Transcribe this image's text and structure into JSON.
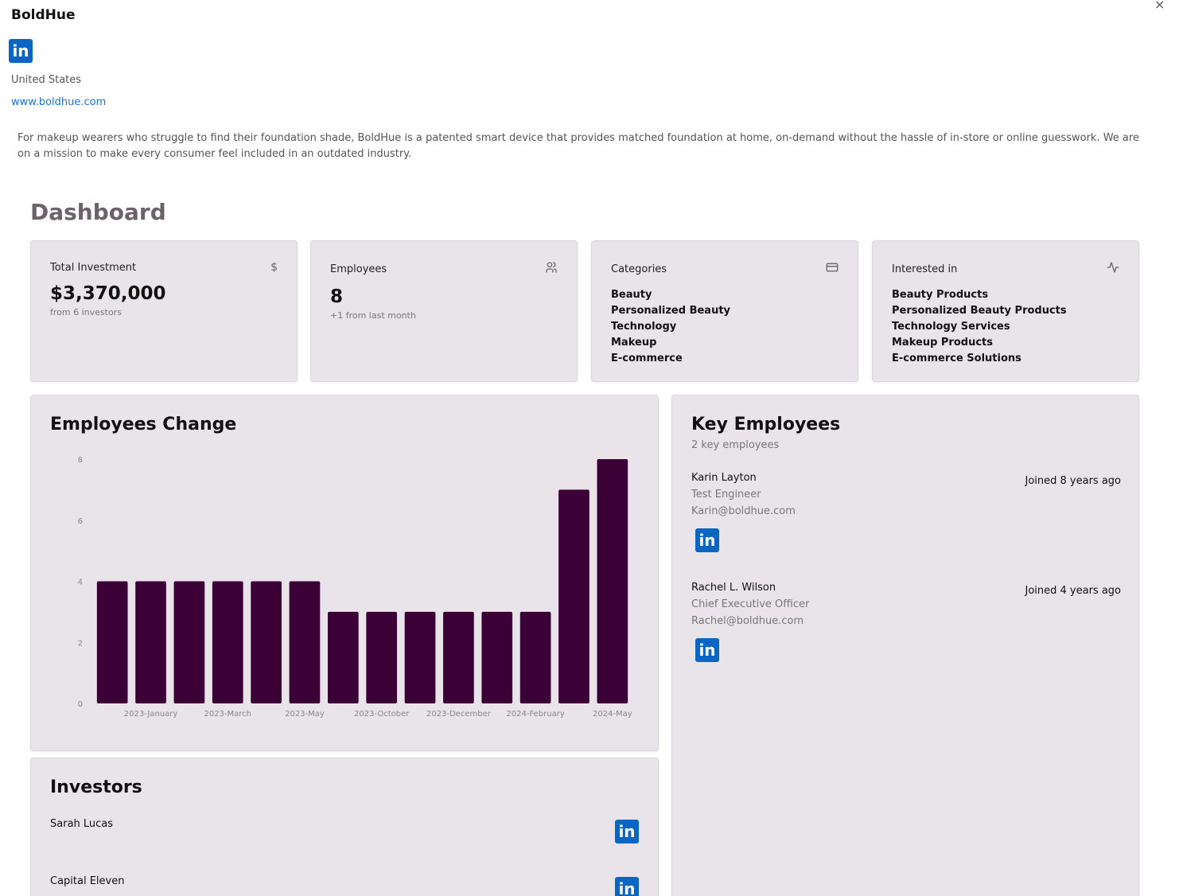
{
  "company": {
    "name": "BoldHue",
    "country": "United States",
    "website": "www.boldhue.com",
    "description": "For makeup wearers who struggle to find their foundation shade, BoldHue is a patented smart device that provides matched foundation at home, on-demand without the hassle of in-store or online guesswork. We are on a mission to make every consumer feel included in an outdated industry."
  },
  "icons": {
    "close": "close-icon",
    "linkedin": "linkedin-icon",
    "dollar": "dollar-icon",
    "users": "users-icon",
    "card": "credit-card-icon",
    "activity": "activity-icon"
  },
  "close_glyph": "×",
  "linkedin_glyph": "in",
  "dashboard": {
    "title": "Dashboard",
    "total_investment": {
      "label": "Total Investment",
      "value": "$3,370,000",
      "sub": "from 6 investors"
    },
    "employees": {
      "label": "Employees",
      "value": "8",
      "sub": "+1 from last month"
    },
    "categories": {
      "label": "Categories",
      "items": [
        "Beauty",
        "Personalized Beauty",
        "Technology",
        "Makeup",
        "E-commerce"
      ]
    },
    "interested_in": {
      "label": "Interested in",
      "items": [
        "Beauty Products",
        "Personalized Beauty Products",
        "Technology Services",
        "Makeup Products",
        "E-commerce Solutions"
      ]
    }
  },
  "employees_change": {
    "title": "Employees Change"
  },
  "chart_data": {
    "type": "bar",
    "title": "Employees Change",
    "bar_color": "#3b0036",
    "ylim": [
      0,
      8
    ],
    "y_ticks": [
      0,
      2,
      4,
      6,
      8
    ],
    "values": [
      4,
      4,
      4,
      4,
      4,
      4,
      3,
      3,
      3,
      3,
      3,
      3,
      7,
      8
    ],
    "x_tick_labels": [
      "2023-January",
      "2023-March",
      "2023-May",
      "2023-October",
      "2023-December",
      "2024-February",
      "2024-May"
    ],
    "xlabel": "",
    "ylabel": "",
    "grid": false
  },
  "key_employees": {
    "title": "Key Employees",
    "subtitle": "2 key employees",
    "list": [
      {
        "name": "Karin Layton",
        "role": "Test Engineer",
        "email": "Karin@boldhue.com",
        "joined": "Joined 8 years ago"
      },
      {
        "name": "Rachel L. Wilson",
        "role": "Chief Executive Officer",
        "email": "Rachel@boldhue.com",
        "joined": "Joined 4 years ago"
      }
    ]
  },
  "investors": {
    "title": "Investors",
    "list": [
      {
        "name": "Sarah Lucas"
      },
      {
        "name": "Capital Eleven"
      }
    ]
  },
  "colors": {
    "card_bg": "#e8e4ea",
    "link": "#1a73e8",
    "linkedin": "#0a66c2",
    "bar": "#3b0036"
  }
}
